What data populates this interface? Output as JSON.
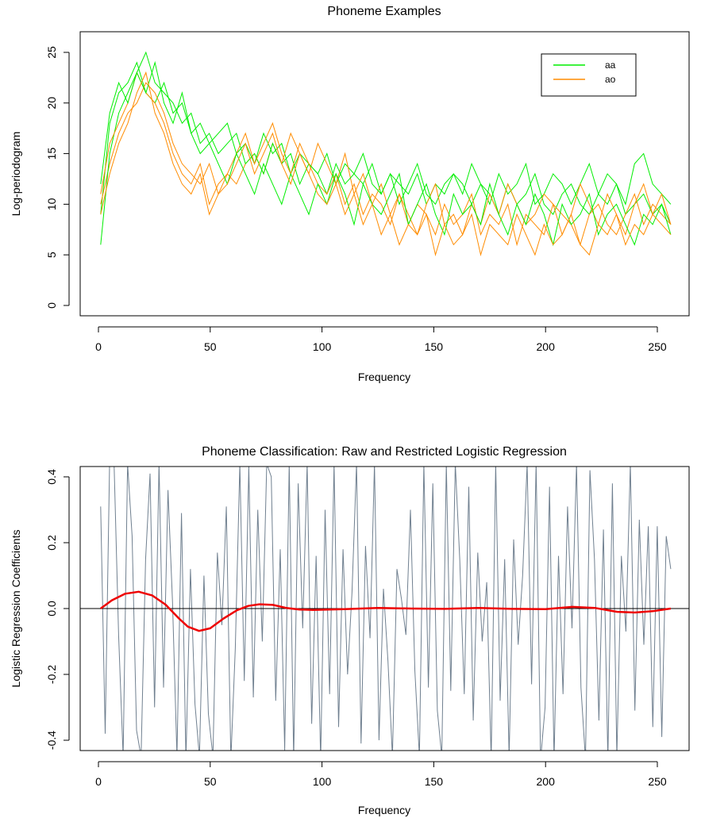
{
  "chart_data": [
    {
      "type": "line",
      "title": "Phoneme Examples",
      "xlabel": "Frequency",
      "ylabel": "Log-periodogram",
      "xlim": [
        1,
        256
      ],
      "ylim": [
        0,
        26
      ],
      "xticks": [
        "0",
        "50",
        "100",
        "150",
        "200",
        "250"
      ],
      "yticks": [
        "0",
        "5",
        "10",
        "15",
        "20",
        "25"
      ],
      "grid": false,
      "legend": {
        "placement": "top-right",
        "entries": [
          {
            "name": "aa",
            "color": "#00ee00"
          },
          {
            "name": "ao",
            "color": "#ff8c00"
          }
        ]
      },
      "series": [
        {
          "name": "aa",
          "color": "#00ee00",
          "curves": [
            [
              9,
              18,
              21,
              22,
              24,
              21,
              20,
              22,
              19,
              20,
              17,
              18,
              16,
              17,
              18,
              15,
              16,
              14,
              17,
              15,
              16,
              13,
              15,
              14,
              13,
              15,
              12,
              14,
              13,
              12,
              14,
              11,
              13,
              12,
              11,
              13,
              10,
              12,
              11,
              13,
              12,
              10,
              12,
              11,
              9,
              12,
              10,
              11,
              13,
              10,
              9,
              11,
              12,
              10,
              9,
              11,
              10,
              12,
              9,
              10,
              11,
              9,
              10,
              8
            ],
            [
              6,
              15,
              19,
              21,
              23,
              25,
              22,
              21,
              20,
              18,
              19,
              16,
              17,
              15,
              16,
              17,
              14,
              15,
              13,
              16,
              14,
              15,
              12,
              14,
              13,
              11,
              14,
              12,
              13,
              15,
              12,
              11,
              13,
              10,
              12,
              14,
              11,
              10,
              12,
              13,
              11,
              14,
              12,
              10,
              13,
              11,
              12,
              14,
              10,
              11,
              13,
              12,
              10,
              12,
              14,
              11,
              13,
              12,
              10,
              14,
              15,
              12,
              11,
              10
            ],
            [
              12,
              19,
              22,
              20,
              23,
              21,
              24,
              20,
              18,
              21,
              17,
              15,
              16,
              14,
              12,
              15,
              13,
              11,
              14,
              12,
              10,
              13,
              11,
              9,
              12,
              10,
              13,
              11,
              8,
              12,
              10,
              9,
              11,
              13,
              8,
              10,
              12,
              9,
              7,
              11,
              9,
              10,
              8,
              12,
              9,
              7,
              10,
              8,
              11,
              9,
              6,
              10,
              8,
              9,
              11,
              7,
              9,
              10,
              8,
              6,
              9,
              8,
              10,
              7
            ]
          ]
        },
        {
          "name": "ao",
          "color": "#ff8c00",
          "curves": [
            [
              10,
              14,
              17,
              19,
              20,
              22,
              21,
              19,
              16,
              14,
              13,
              12,
              14,
              11,
              13,
              12,
              14,
              15,
              13,
              16,
              14,
              17,
              15,
              13,
              16,
              14,
              12,
              15,
              11,
              13,
              10,
              12,
              9,
              11,
              8,
              10,
              9,
              7,
              10,
              8,
              9,
              11,
              7,
              9,
              8,
              10,
              6,
              9,
              8,
              7,
              10,
              9,
              8,
              6,
              9,
              10,
              8,
              7,
              9,
              11,
              8,
              10,
              9,
              8
            ],
            [
              11,
              16,
              18,
              20,
              23,
              21,
              20,
              18,
              15,
              13,
              12,
              14,
              10,
              12,
              13,
              15,
              17,
              14,
              16,
              18,
              15,
              13,
              16,
              14,
              12,
              11,
              13,
              10,
              12,
              9,
              11,
              10,
              8,
              11,
              9,
              7,
              10,
              12,
              8,
              9,
              7,
              10,
              8,
              11,
              9,
              12,
              10,
              8,
              9,
              11,
              10,
              7,
              9,
              12,
              10,
              8,
              11,
              9,
              7,
              10,
              12,
              9,
              11,
              8
            ],
            [
              9,
              13,
              16,
              18,
              21,
              23,
              19,
              17,
              14,
              12,
              11,
              13,
              9,
              11,
              12,
              14,
              16,
              13,
              15,
              17,
              14,
              12,
              15,
              13,
              11,
              10,
              12,
              9,
              11,
              8,
              10,
              7,
              9,
              6,
              8,
              7,
              9,
              5,
              8,
              6,
              7,
              9,
              5,
              8,
              7,
              6,
              9,
              7,
              5,
              8,
              6,
              7,
              9,
              6,
              5,
              8,
              7,
              9,
              6,
              8,
              7,
              9,
              8,
              7
            ]
          ]
        }
      ]
    },
    {
      "type": "line",
      "title": "Phoneme Classification: Raw and Restricted Logistic Regression",
      "xlabel": "Frequency",
      "ylabel": "Logistic Regression Coefficients",
      "xlim": [
        1,
        256
      ],
      "ylim": [
        -0.4,
        0.4
      ],
      "xticks": [
        "0",
        "50",
        "100",
        "150",
        "200",
        "250"
      ],
      "yticks": [
        "-0.4",
        "-0.2",
        "0.0",
        "0.2",
        "0.4"
      ],
      "grid": false,
      "reference_line": 0,
      "series": [
        {
          "color": "#708090",
          "values": [
            0.31,
            -0.38,
            0.45,
            0.43,
            -0.08,
            -0.45,
            0.44,
            0.22,
            -0.37,
            -0.45,
            0.15,
            0.41,
            -0.3,
            0.44,
            -0.24,
            0.36,
            0.02,
            -0.45,
            0.29,
            -0.46,
            0.12,
            -0.29,
            -0.45,
            0.1,
            -0.32,
            -0.45,
            0.17,
            -0.05,
            0.31,
            -0.46,
            -0.12,
            0.44,
            -0.22,
            0.43,
            -0.27,
            0.3,
            -0.1,
            0.44,
            0.4,
            -0.28,
            0.18,
            -0.43,
            0.44,
            -0.46,
            0.38,
            -0.06,
            0.44,
            -0.35,
            0.16,
            -0.46,
            0.3,
            -0.26,
            0.44,
            -0.36,
            0.18,
            -0.2,
            0.05,
            0.44,
            -0.41,
            0.19,
            -0.09,
            0.44,
            -0.4,
            0.06,
            -0.16,
            -0.45,
            0.12,
            0.03,
            -0.08,
            0.3,
            -0.19,
            -0.45,
            0.44,
            -0.24,
            0.38,
            -0.31,
            -0.45,
            0.44,
            -0.25,
            0.44,
            0.15,
            -0.26,
            0.37,
            -0.34,
            0.17,
            -0.1,
            0.08,
            -0.46,
            0.44,
            -0.28,
            0.15,
            -0.45,
            0.21,
            -0.11,
            0.1,
            0.44,
            -0.23,
            0.44,
            -0.46,
            -0.3,
            0.37,
            -0.46,
            0.16,
            -0.26,
            0.31,
            -0.06,
            0.44,
            -0.24,
            -0.46,
            0.42,
            0.15,
            -0.34,
            0.24,
            -0.46,
            0.38,
            -0.45,
            0.16,
            -0.07,
            0.44,
            -0.31,
            0.27,
            -0.11,
            0.25,
            -0.36,
            0.25,
            -0.39,
            0.22,
            0.12
          ]
        },
        {
          "color": "#ee0000",
          "x": [
            1,
            6,
            12,
            18,
            24,
            30,
            36,
            40,
            45,
            50,
            56,
            62,
            67,
            72,
            78,
            84,
            90,
            96,
            110,
            125,
            140,
            155,
            170,
            185,
            200,
            212,
            222,
            232,
            240,
            248,
            256
          ],
          "values": [
            0,
            0.025,
            0.045,
            0.051,
            0.04,
            0.012,
            -0.03,
            -0.055,
            -0.068,
            -0.06,
            -0.03,
            -0.005,
            0.008,
            0.013,
            0.011,
            0.002,
            -0.003,
            -0.004,
            -0.002,
            0.002,
            0,
            -0.001,
            0.002,
            -0.001,
            -0.002,
            0.005,
            0.002,
            -0.01,
            -0.012,
            -0.008,
            0
          ]
        }
      ]
    }
  ]
}
